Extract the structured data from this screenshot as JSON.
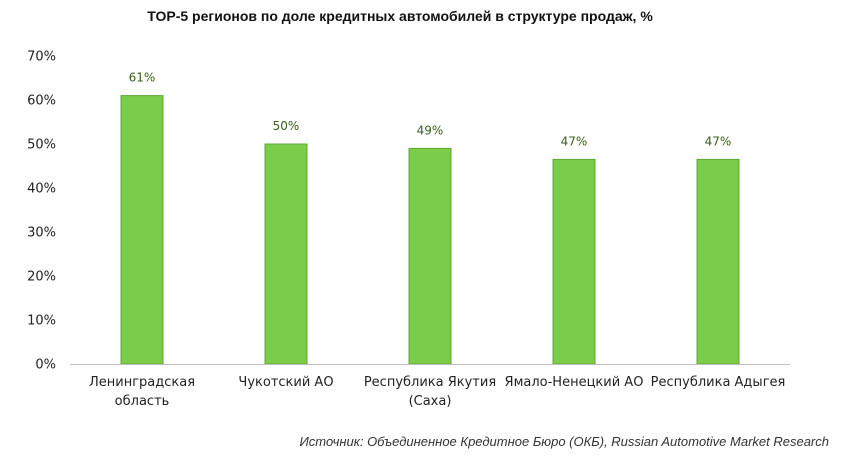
{
  "colors": {
    "bar_fill": "#7acc4a",
    "bar_stroke": "#5fa832",
    "label_color": "#3a5d1a",
    "axis_color": "#bfbfbf"
  },
  "source_note": "Источник: Объединенное Кредитное Бюро (ОКБ), Russian Automotive Market Research",
  "chart_data": {
    "type": "bar",
    "title": "TOP-5 регионов по доле кредитных автомобилей в структуре продаж, %",
    "xlabel": "",
    "ylabel": "",
    "categories": [
      [
        "Ленинградская",
        "область"
      ],
      [
        "Чукотский АО"
      ],
      [
        "Республика Якутия",
        "(Саха)"
      ],
      [
        "Ямало-Ненецкий АО"
      ],
      [
        "Республика Адыгея"
      ]
    ],
    "values": [
      61,
      50,
      49,
      46.5,
      46.5
    ],
    "data_labels": [
      "61%",
      "50%",
      "49%",
      "47%",
      "47%"
    ],
    "ylim": [
      0,
      70
    ],
    "yticks": [
      0,
      10,
      20,
      30,
      40,
      50,
      60,
      70
    ],
    "ytick_labels": [
      "0%",
      "10%",
      "20%",
      "30%",
      "40%",
      "50%",
      "60%",
      "70%"
    ],
    "grid": false,
    "legend": "none"
  }
}
